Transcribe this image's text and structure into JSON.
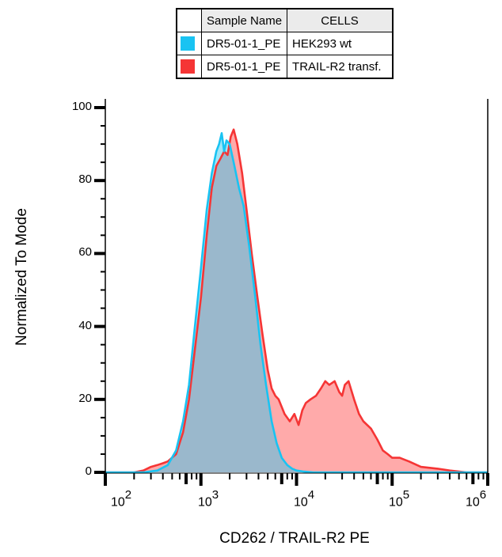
{
  "chart_data": {
    "type": "area",
    "title": "",
    "xlabel": "CD262 / TRAIL-R2 PE",
    "ylabel": "Normalized To Mode",
    "xscale": "log",
    "xlim": [
      100,
      1000000
    ],
    "ylim": [
      0,
      100
    ],
    "grid": false,
    "legend_position": "top-center table",
    "y_ticks": [
      "0",
      "20",
      "40",
      "60",
      "80",
      "100"
    ],
    "x_ticks": [
      {
        "base": "10",
        "exp": "2"
      },
      {
        "base": "10",
        "exp": "3"
      },
      {
        "base": "10",
        "exp": "4"
      },
      {
        "base": "10",
        "exp": "5"
      },
      {
        "base": "10",
        "exp": "6"
      }
    ],
    "legend": {
      "headers": [
        "Sample Name",
        "CELLS"
      ],
      "rows": [
        {
          "sample": "DR5-01-1_PE",
          "cells": "HEK293 wt",
          "color": "#19c3f2"
        },
        {
          "sample": "DR5-01-1_PE",
          "cells": "TRAIL-R2 transf.",
          "color": "#f53535"
        }
      ]
    },
    "series": [
      {
        "name": "HEK293 wt",
        "line_color": "#19c3f2",
        "fill_color": "#9fe6f7",
        "x": [
          100,
          150,
          250,
          350,
          450,
          550,
          650,
          750,
          850,
          1000,
          1150,
          1300,
          1450,
          1550,
          1650,
          1750,
          1850,
          2000,
          2200,
          2500,
          2800,
          3200,
          3700,
          4200,
          4800,
          5500,
          6200,
          7000,
          8000,
          9000,
          10000,
          12000,
          15000,
          20000,
          50000,
          100000,
          1000000
        ],
        "values": [
          0,
          0,
          0,
          0.5,
          2,
          6,
          14,
          24,
          38,
          56,
          72,
          82,
          88,
          90,
          93,
          88,
          91,
          90,
          85,
          78,
          73,
          62,
          48,
          35,
          24,
          14,
          8,
          4,
          2,
          1,
          0.5,
          0.2,
          0,
          0,
          0,
          0,
          0
        ]
      },
      {
        "name": "TRAIL-R2 transf.",
        "line_color": "#f53535",
        "fill_color": "#ffaaaa",
        "x": [
          100,
          200,
          250,
          300,
          350,
          400,
          450,
          550,
          650,
          750,
          850,
          1000,
          1150,
          1300,
          1450,
          1600,
          1750,
          1900,
          2050,
          2200,
          2400,
          2700,
          3000,
          3400,
          3900,
          4400,
          5000,
          5500,
          6000,
          6500,
          7500,
          8500,
          9500,
          10500,
          11500,
          12500,
          14000,
          16000,
          18000,
          20000,
          22000,
          25000,
          28000,
          30000,
          32000,
          35000,
          40000,
          45000,
          50000,
          60000,
          70000,
          80000,
          90000,
          100000,
          120000,
          150000,
          200000,
          300000,
          400000,
          600000,
          1000000
        ],
        "values": [
          0,
          0,
          0.5,
          1.5,
          2,
          2.5,
          3,
          5,
          11,
          20,
          32,
          48,
          65,
          78,
          84,
          86,
          88,
          87,
          92,
          94,
          90,
          82,
          72,
          60,
          48,
          38,
          28,
          23,
          21,
          20,
          16,
          14,
          16,
          13,
          17,
          19,
          20,
          21,
          23,
          25,
          24,
          25,
          22,
          21,
          24,
          25,
          20,
          16,
          14,
          12,
          9,
          6,
          5,
          4,
          4,
          3,
          1.5,
          1,
          0.5,
          0,
          0
        ]
      }
    ],
    "overlap_fill_color": "#9ab8cc"
  }
}
